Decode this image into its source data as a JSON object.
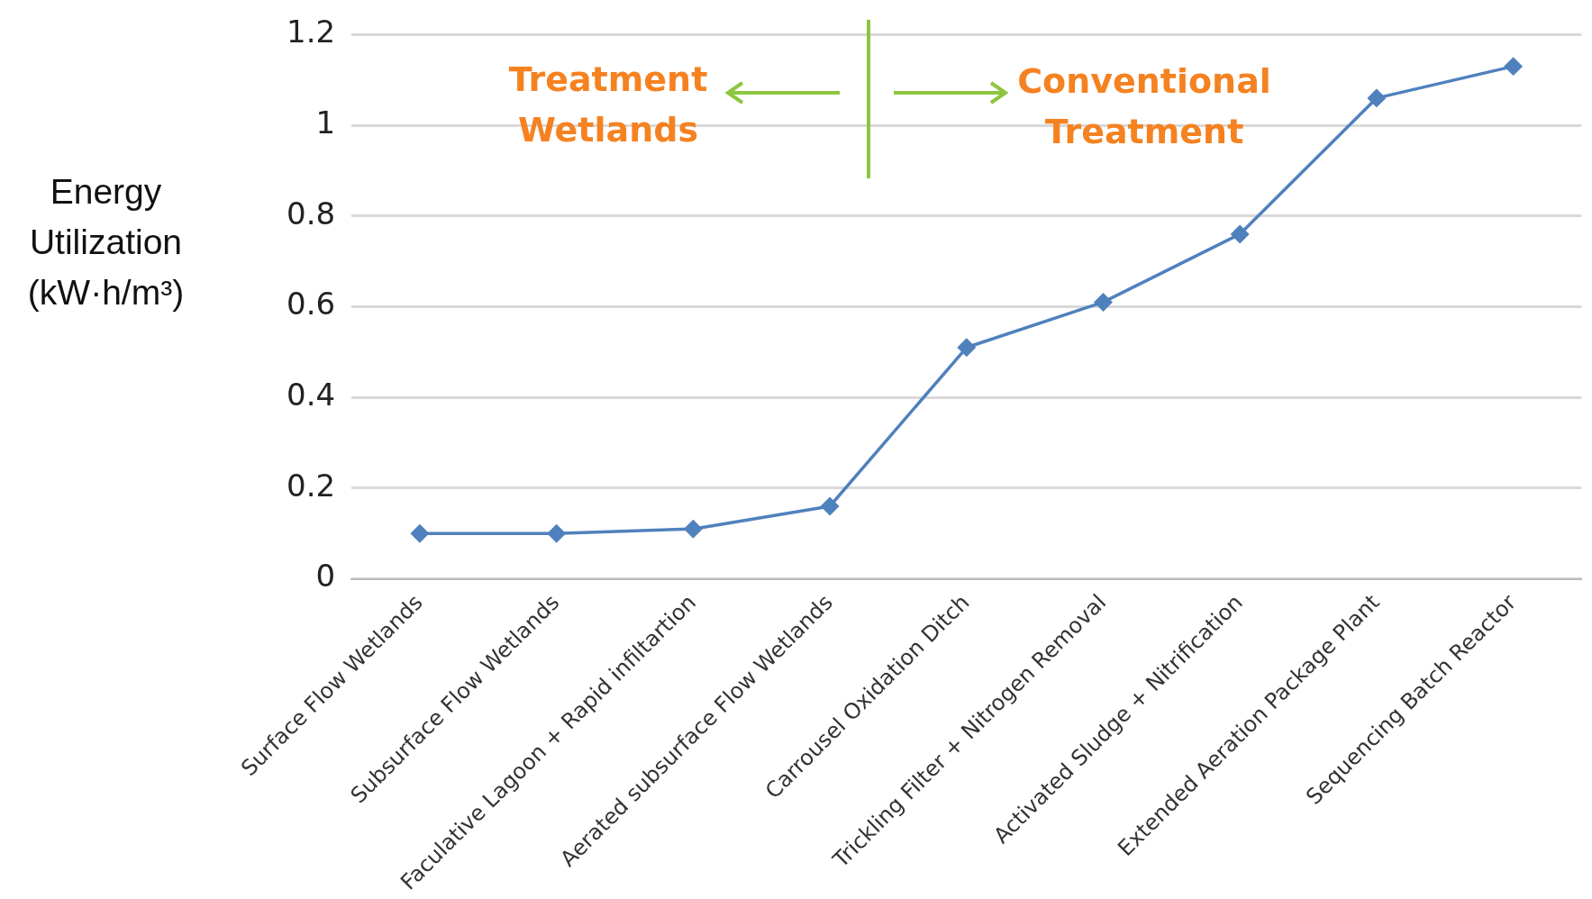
{
  "chart_data": {
    "type": "line",
    "ylabel": "Energy Utilization (kW·h/m³)",
    "categories": [
      "Surface Flow Wetlands",
      "Subsurface Flow Wetlands",
      "Faculative Lagoon + Rapid infiltartion",
      "Aerated subsurface Flow Wetlands",
      "Carrousel Oxidation Ditch",
      "Trickling Filter + Nitrogen Removal",
      "Activated Sludge + Nitrification",
      "Extended Aeration Package Plant",
      "Sequencing Batch Reactor"
    ],
    "series": [
      {
        "color": "#4f81bd",
        "values": [
          0.1,
          0.1,
          0.11,
          0.16,
          0.51,
          0.61,
          0.76,
          1.06,
          1.13
        ]
      }
    ],
    "ylim": [
      0,
      1.2
    ],
    "yticks": [
      0,
      0.2,
      0.4,
      0.6,
      0.8,
      1,
      1.2
    ],
    "grid": "y",
    "legend": false,
    "marker": "diamond",
    "line_style": "solid",
    "annotations": [
      "Treatment Wetlands",
      "Conventional Treatment"
    ]
  }
}
